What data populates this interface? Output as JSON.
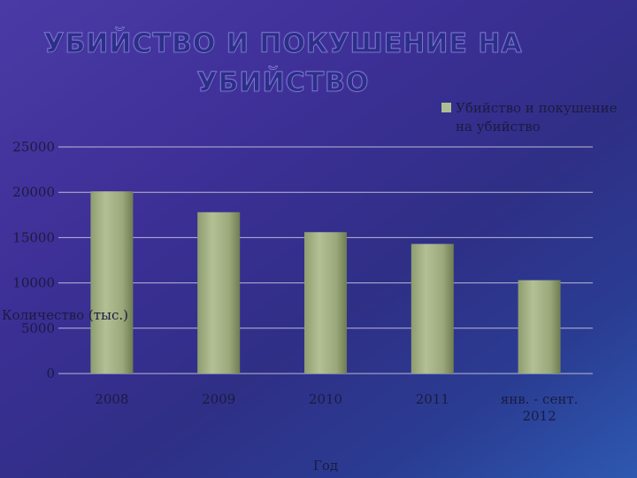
{
  "slide": {
    "title": "УБИЙСТВО И ПОКУШЕНИЕ НА УБИЙСТВО"
  },
  "chart_data": {
    "type": "bar",
    "categories": [
      [
        "2008"
      ],
      [
        "2009"
      ],
      [
        "2010"
      ],
      [
        "2011"
      ],
      [
        "янв. - сент.",
        "2012"
      ]
    ],
    "series": [
      {
        "name_lines": [
          "Убийство и покушение",
          "на убийство"
        ],
        "values": [
          20100,
          17800,
          15600,
          14300,
          10300
        ],
        "color": "#9aa87a"
      }
    ],
    "xlabel": "Год",
    "ylabel": "Количество (тыс.)",
    "ylim": [
      0,
      25000
    ],
    "yticks": [
      0,
      5000,
      10000,
      15000,
      20000,
      25000
    ],
    "grid": true,
    "legend": "top-right"
  }
}
